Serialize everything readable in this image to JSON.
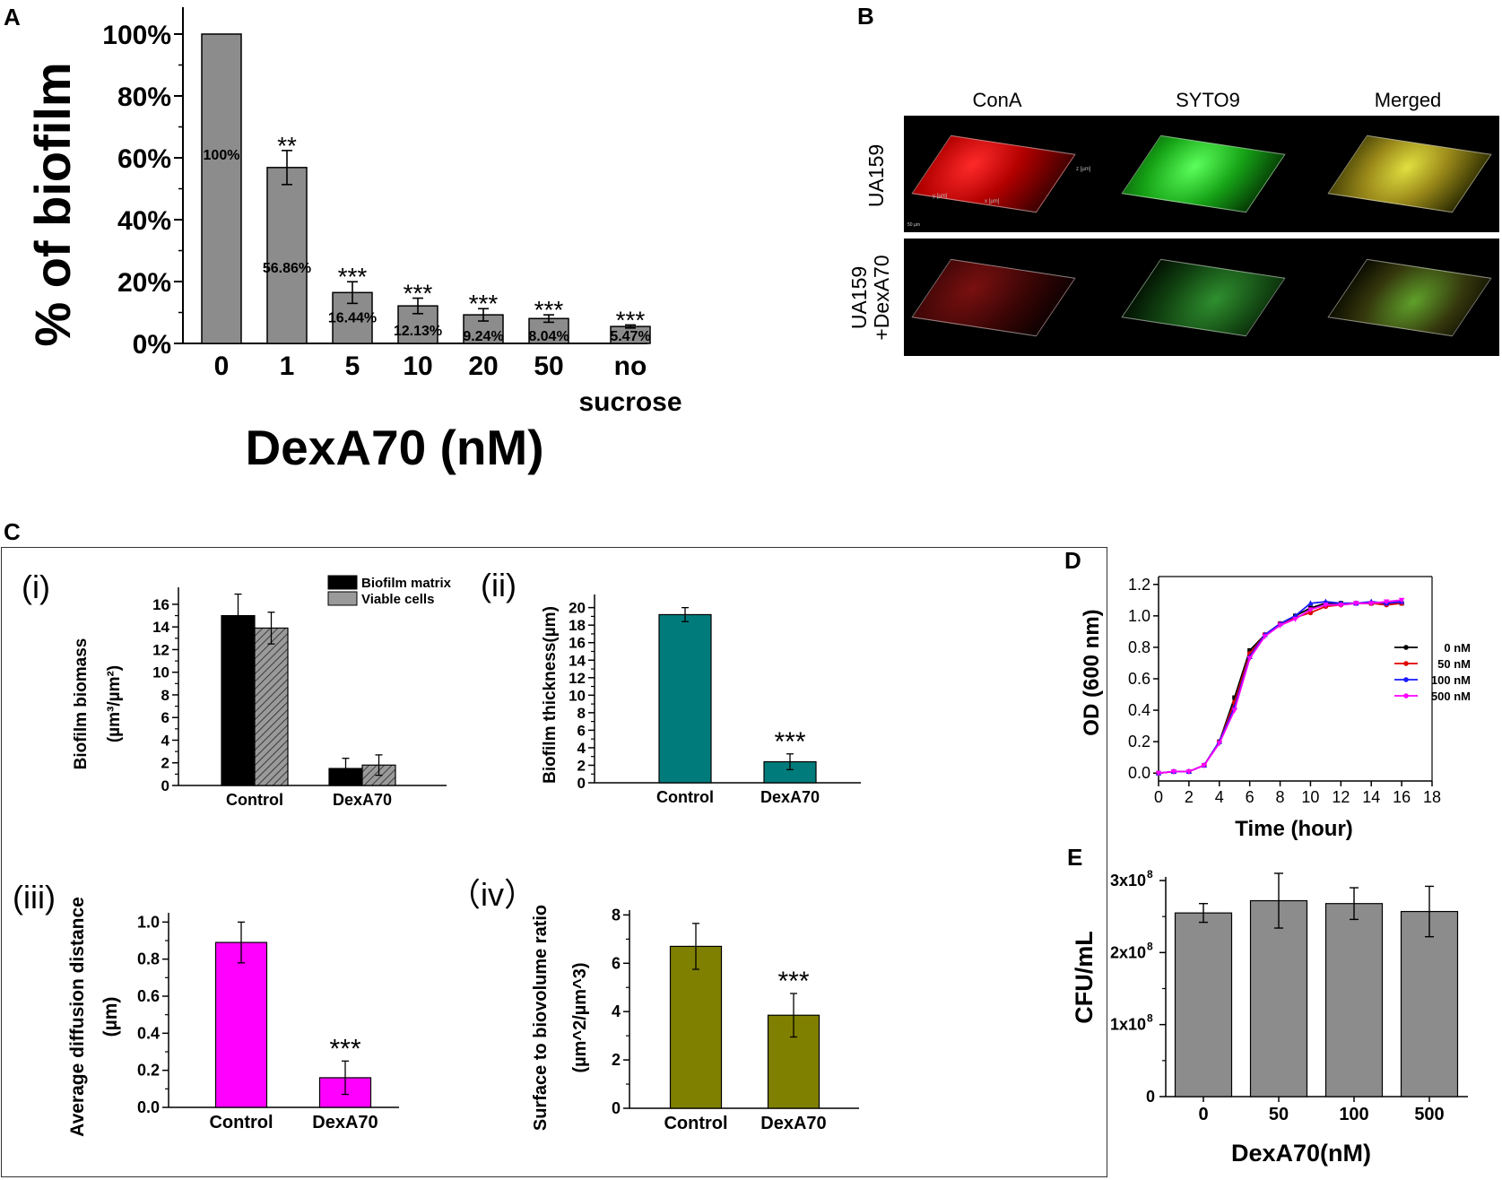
{
  "panel_labels": {
    "a": "A",
    "b": "B",
    "c": "C",
    "d": "D",
    "e": "E"
  },
  "panel_b": {
    "columns": [
      "ConA",
      "SYTO9",
      "Merged"
    ],
    "rows": [
      "UA159",
      "UA159",
      "+DexA70"
    ],
    "axis_marks": [
      "x [µm]",
      "y [µm]",
      "z [µm]"
    ],
    "scale_bar": "50 µm"
  },
  "chart_data": [
    {
      "id": "A",
      "type": "bar",
      "categories": [
        "0",
        "1",
        "5",
        "10",
        "20",
        "50",
        "no sucrose"
      ],
      "values": [
        100,
        56.86,
        16.44,
        12.13,
        9.24,
        8.04,
        5.47
      ],
      "errors": [
        0,
        5.5,
        3.5,
        2.5,
        2.0,
        1.2,
        0.5
      ],
      "value_labels": [
        "100%",
        "56.86%",
        "16.44%",
        "12.13%",
        "9.24%",
        "8.04%",
        "5.47%"
      ],
      "significance": [
        "",
        "**",
        "***",
        "***",
        "***",
        "***",
        "***"
      ],
      "xlabel": "DexA70 (nM)",
      "ylabel": "% of biofilm",
      "yticks": [
        "0%",
        "20%",
        "40%",
        "60%",
        "80%",
        "100%"
      ],
      "ylim": [
        0,
        110
      ],
      "color": "#8c8c8c"
    },
    {
      "id": "C(i)",
      "type": "bar",
      "tag": "(i)",
      "categories": [
        "Control",
        "DexA70"
      ],
      "series": [
        {
          "name": "Biofilm matrix",
          "values": [
            15.0,
            1.5
          ],
          "errors": [
            1.9,
            0.9
          ],
          "color": "#000000"
        },
        {
          "name": "Viable cells",
          "values": [
            13.9,
            1.8
          ],
          "errors": [
            1.4,
            0.9
          ],
          "color": "#9a9a9a"
        }
      ],
      "ylabel": "Biofilm biomass",
      "ylabel_units": "(µm³/µm²)",
      "yticks": [
        "0",
        "2",
        "4",
        "6",
        "8",
        "10",
        "12",
        "14",
        "16"
      ],
      "ylim": [
        0,
        17.5
      ]
    },
    {
      "id": "C(ii)",
      "type": "bar",
      "tag": "(ii)",
      "categories": [
        "Control",
        "DexA70"
      ],
      "values": [
        19.2,
        2.4
      ],
      "errors": [
        0.8,
        0.9
      ],
      "significance": [
        "",
        "***"
      ],
      "ylabel": "Biofilm thickness(µm)",
      "yticks": [
        "0",
        "2",
        "4",
        "6",
        "8",
        "10",
        "12",
        "14",
        "16",
        "18",
        "20"
      ],
      "ylim": [
        0,
        21.5
      ],
      "color": "#007b7b"
    },
    {
      "id": "C(iii)",
      "type": "bar",
      "tag": "(iii)",
      "categories": [
        "Control",
        "DexA70"
      ],
      "values": [
        0.89,
        0.16
      ],
      "errors": [
        0.11,
        0.09
      ],
      "significance": [
        "",
        "***"
      ],
      "ylabel": "Average diffusion distance",
      "ylabel_units": "(µm)",
      "yticks": [
        "0.0",
        "0.2",
        "0.4",
        "0.6",
        "0.8",
        "1.0"
      ],
      "ylim": [
        0,
        1.05
      ],
      "color": "#ff00ff"
    },
    {
      "id": "C(iv)",
      "type": "bar",
      "tag": "（iv）",
      "categories": [
        "Control",
        "DexA70"
      ],
      "values": [
        6.7,
        3.85
      ],
      "errors": [
        0.95,
        0.9
      ],
      "significance": [
        "",
        "***"
      ],
      "ylabel": "Surface to biovolume ratio",
      "ylabel_units": "(µm^2/µm^3)",
      "yticks": [
        "0",
        "2",
        "4",
        "6",
        "8"
      ],
      "ylim": [
        0,
        8.2
      ],
      "color": "#808000"
    },
    {
      "id": "D",
      "type": "line",
      "x": [
        0,
        1,
        2,
        3,
        4,
        5,
        6,
        7,
        8,
        9,
        10,
        11,
        12,
        13,
        14,
        15,
        16
      ],
      "series": [
        {
          "name": "0 nM",
          "color": "#000000",
          "values": [
            0.0,
            0.01,
            0.01,
            0.05,
            0.2,
            0.48,
            0.78,
            0.88,
            0.95,
            1.0,
            1.05,
            1.08,
            1.08,
            1.08,
            1.08,
            1.08,
            1.08
          ]
        },
        {
          "name": "50 nM",
          "color": "#e00000",
          "values": [
            0.0,
            0.01,
            0.01,
            0.05,
            0.2,
            0.45,
            0.76,
            0.88,
            0.95,
            0.99,
            1.02,
            1.06,
            1.07,
            1.08,
            1.08,
            1.07,
            1.08
          ]
        },
        {
          "name": "100 nM",
          "color": "#1a1aff",
          "values": [
            0.0,
            0.01,
            0.01,
            0.05,
            0.2,
            0.42,
            0.74,
            0.88,
            0.95,
            1.0,
            1.08,
            1.09,
            1.08,
            1.08,
            1.09,
            1.08,
            1.09
          ]
        },
        {
          "name": "500 nM",
          "color": "#ff00ff",
          "values": [
            0.0,
            0.01,
            0.01,
            0.05,
            0.19,
            0.4,
            0.73,
            0.87,
            0.94,
            0.98,
            1.04,
            1.07,
            1.07,
            1.08,
            1.08,
            1.09,
            1.1
          ]
        }
      ],
      "xlabel": "Time (hour)",
      "ylabel": "OD (600 nm)",
      "xticks": [
        "0",
        "2",
        "4",
        "6",
        "8",
        "10",
        "12",
        "14",
        "16",
        "18"
      ],
      "yticks": [
        "0.0",
        "0.2",
        "0.4",
        "0.6",
        "0.8",
        "1.0",
        "1.2"
      ],
      "xlim": [
        0,
        18
      ],
      "ylim": [
        -0.05,
        1.25
      ]
    },
    {
      "id": "E",
      "type": "bar",
      "categories": [
        "0",
        "50",
        "100",
        "500"
      ],
      "values": [
        2.55,
        2.72,
        2.68,
        2.57
      ],
      "errors": [
        0.13,
        0.38,
        0.22,
        0.35
      ],
      "xlabel": "DexA70(nM)",
      "ylabel": "CFU/mL",
      "yticks": [
        {
          "mantissa": "0",
          "exp": ""
        },
        {
          "mantissa": "1x10",
          "exp": "8"
        },
        {
          "mantissa": "2x10",
          "exp": "8"
        },
        {
          "mantissa": "3x10",
          "exp": "8"
        }
      ],
      "ylim": [
        0,
        3.05
      ],
      "color": "#8c8c8c"
    }
  ]
}
